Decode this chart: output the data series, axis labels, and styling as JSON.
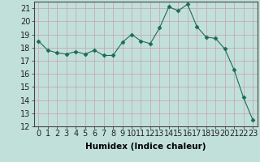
{
  "x": [
    0,
    1,
    2,
    3,
    4,
    5,
    6,
    7,
    8,
    9,
    10,
    11,
    12,
    13,
    14,
    15,
    16,
    17,
    18,
    19,
    20,
    21,
    22,
    23
  ],
  "y": [
    18.5,
    17.8,
    17.6,
    17.5,
    17.7,
    17.5,
    17.8,
    17.4,
    17.4,
    18.4,
    19.0,
    18.5,
    18.3,
    19.5,
    21.1,
    20.8,
    21.3,
    19.6,
    18.8,
    18.7,
    17.9,
    16.3,
    14.2,
    12.5
  ],
  "line_color": "#1a6b5a",
  "marker": "D",
  "marker_size": 2.5,
  "bg_color": "#c2e0da",
  "grid_color": "#c8a0a8",
  "xlabel": "Humidex (Indice chaleur)",
  "xlabel_fontsize": 7.5,
  "tick_fontsize": 7,
  "ylim": [
    12,
    21.5
  ],
  "yticks": [
    12,
    13,
    14,
    15,
    16,
    17,
    18,
    19,
    20,
    21
  ],
  "xticks": [
    0,
    1,
    2,
    3,
    4,
    5,
    6,
    7,
    8,
    9,
    10,
    11,
    12,
    13,
    14,
    15,
    16,
    17,
    18,
    19,
    20,
    21,
    22,
    23
  ]
}
